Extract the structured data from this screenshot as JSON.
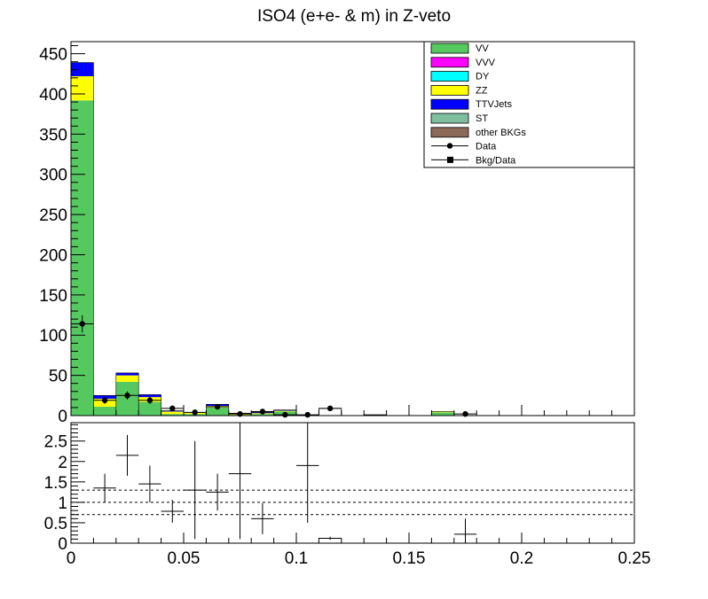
{
  "chart_data": {
    "type": "bar",
    "title": "ISO4 (e+e- & m) in Z-veto",
    "xlabel": "",
    "ylabel": "",
    "xlim": [
      0,
      0.25
    ],
    "bin_width": 0.01,
    "bin_centers": [
      0.005,
      0.015,
      0.025,
      0.035,
      0.045,
      0.055,
      0.065,
      0.075,
      0.085,
      0.095,
      0.105,
      0.115,
      0.125,
      0.135,
      0.145,
      0.155,
      0.165,
      0.175,
      0.185,
      0.195,
      0.205,
      0.215,
      0.225,
      0.235,
      0.245
    ],
    "legend_position": "top-right",
    "top_panel": {
      "ylim": [
        0,
        465
      ],
      "yticks": [
        0,
        50,
        100,
        150,
        200,
        250,
        300,
        350,
        400,
        450
      ],
      "series": [
        {
          "name": "VV",
          "color": "#55c85f",
          "values": [
            392,
            11,
            42,
            17,
            2,
            2,
            10,
            1,
            2,
            5,
            0,
            0,
            0,
            0,
            0,
            0,
            4,
            0,
            0,
            0,
            0,
            0,
            0,
            0,
            0
          ]
        },
        {
          "name": "VVV",
          "color": "#ff00ff",
          "values": [
            0,
            0,
            0,
            0,
            0,
            0,
            0,
            0,
            0,
            0,
            0,
            0,
            0,
            0,
            0,
            0,
            0,
            0,
            0,
            0,
            0,
            0,
            0,
            0,
            0
          ]
        },
        {
          "name": "DY",
          "color": "#00ffff",
          "values": [
            0,
            0,
            0,
            0,
            0,
            0,
            0,
            0,
            0,
            0,
            0,
            0,
            0,
            0,
            0,
            0,
            0,
            0,
            0,
            0,
            0,
            0,
            0,
            0,
            0
          ]
        },
        {
          "name": "ZZ",
          "color": "#ffff00",
          "values": [
            30,
            10,
            8,
            6,
            3,
            2,
            2,
            1,
            1,
            1,
            0,
            0,
            0,
            0,
            0,
            0,
            1,
            0,
            0,
            0,
            0,
            0,
            0,
            0,
            0
          ]
        },
        {
          "name": "TTVJets",
          "color": "#0000ff",
          "values": [
            17,
            4,
            3,
            3,
            1,
            0,
            2,
            1,
            1,
            1,
            0,
            0,
            0,
            0,
            0,
            0,
            0,
            0,
            0,
            0,
            0,
            0,
            0,
            0,
            0
          ]
        },
        {
          "name": "ST",
          "color": "#7fbf9f",
          "values": [
            0,
            0,
            0,
            0,
            0,
            0,
            0,
            0,
            0,
            0,
            0,
            0,
            0,
            0,
            0,
            0,
            0,
            0,
            0,
            0,
            0,
            0,
            0,
            0,
            0
          ]
        },
        {
          "name": "other BKGs",
          "color": "#8b6a5a",
          "values": [
            0,
            0,
            0,
            0,
            0,
            0,
            0,
            0,
            0,
            0,
            0,
            0,
            0,
            0,
            0,
            0,
            0,
            0,
            0,
            0,
            0,
            0,
            0,
            0,
            0
          ]
        },
        {
          "name": "Data",
          "color": "#000000",
          "marker": "circle",
          "values": [
            114,
            19,
            25,
            19,
            9,
            4,
            11,
            2,
            5,
            1,
            1,
            9,
            null,
            null,
            null,
            null,
            null,
            2,
            null,
            null,
            null,
            null,
            null,
            null,
            null
          ]
        },
        {
          "name": "Bkg/Data",
          "color": "#000000",
          "marker": "square",
          "values": []
        }
      ],
      "white_bins": [
        {
          "x": 0.115,
          "value": 9
        },
        {
          "x": 0.135,
          "value": 1
        }
      ]
    },
    "bottom_panel": {
      "ylim": [
        0,
        2.95
      ],
      "yticks": [
        0,
        0.5,
        1,
        1.5,
        2,
        2.5
      ],
      "reference_lines": [
        0.7,
        1.0,
        1.3
      ],
      "xticks": [
        0,
        0.05,
        0.1,
        0.15,
        0.2,
        0.25
      ],
      "xtick_labels": [
        "0",
        "0.05",
        "0.1",
        "0.15",
        "0.2",
        "0.25"
      ],
      "ratio_points": [
        {
          "x": 0.015,
          "y": 1.35,
          "err": 0.35
        },
        {
          "x": 0.025,
          "y": 2.15,
          "err": 0.5
        },
        {
          "x": 0.035,
          "y": 1.45,
          "err": 0.45
        },
        {
          "x": 0.045,
          "y": 0.78,
          "err": 0.28
        },
        {
          "x": 0.055,
          "y": 1.3,
          "err": 1.2
        },
        {
          "x": 0.065,
          "y": 1.25,
          "err": 0.45
        },
        {
          "x": 0.075,
          "y": 1.7,
          "err": 1.6
        },
        {
          "x": 0.085,
          "y": 0.6,
          "err": 0.38
        },
        {
          "x": 0.105,
          "y": 1.9,
          "err": 1.4
        },
        {
          "x": 0.115,
          "y": 0.12,
          "err": 0.04
        },
        {
          "x": 0.175,
          "y": 0.22,
          "err": 0.38
        }
      ]
    }
  }
}
